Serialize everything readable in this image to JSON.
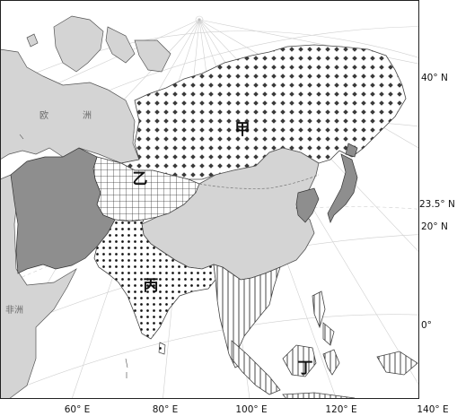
{
  "regions": {
    "jia": "甲",
    "yi": "乙",
    "bing": "丙",
    "ding": "丁"
  },
  "continents": {
    "europe_1": "欧",
    "europe_2": "洲",
    "africa": "非洲"
  },
  "latitude_labels": {
    "lat_40": "40° N",
    "lat_23_5": "23.5° N",
    "lat_20": "20° N",
    "lat_0": "0°"
  },
  "longitude_labels": {
    "lon_60": "60° E",
    "lon_80": "80° E",
    "lon_100": "100° E",
    "lon_120": "120° E",
    "lon_140": "140° E"
  },
  "colors": {
    "land_other": "#d4d4d4",
    "land_dark": "#8e8e8e",
    "ocean": "#ffffff",
    "grid": "#c8c8c8"
  }
}
